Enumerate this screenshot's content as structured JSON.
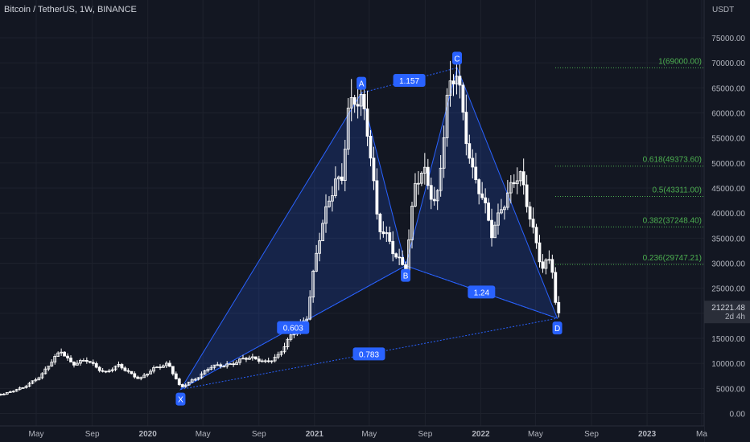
{
  "header": {
    "symbol": "Bitcoin / TetherUS, 1W, BINANCE",
    "currency": "USDT"
  },
  "colors": {
    "background": "#131722",
    "grid": "#1e222d",
    "text": "#b2b5be",
    "pattern_fill": "rgba(41,98,255,0.18)",
    "pattern_line": "#2962ff",
    "fib_text": "#4caf50",
    "fib_line": "#4caf50",
    "up": "#ffffff",
    "down": "#ffffff",
    "price_tag": "#2a2e39"
  },
  "chart_data": {
    "type": "candlestick",
    "title": "Bitcoin / TetherUS, 1W, BINANCE",
    "y_axis": {
      "label": "USDT",
      "ticks": [
        0,
        5000,
        10000,
        15000,
        20000,
        25000,
        30000,
        35000,
        40000,
        45000,
        50000,
        55000,
        60000,
        65000,
        70000,
        75000
      ],
      "tick_labels": [
        "0.00",
        "5000.00",
        "10000.00",
        "15000.00",
        "20000.00",
        "25000.00",
        "30000.00",
        "35000.00",
        "40000.00",
        "45000.00",
        "50000.00",
        "55000.00",
        "60000.00",
        "65000.00",
        "70000.00",
        "75000.00"
      ]
    },
    "x_axis": {
      "ticks": [
        {
          "label": "May",
          "date": "2019-05-01"
        },
        {
          "label": "Sep",
          "date": "2019-09-01"
        },
        {
          "label": "2020",
          "date": "2020-01-01"
        },
        {
          "label": "May",
          "date": "2020-05-01"
        },
        {
          "label": "Sep",
          "date": "2020-09-01"
        },
        {
          "label": "2021",
          "date": "2021-01-01"
        },
        {
          "label": "May",
          "date": "2021-05-01"
        },
        {
          "label": "Sep",
          "date": "2021-09-01"
        },
        {
          "label": "2022",
          "date": "2022-01-01"
        },
        {
          "label": "May",
          "date": "2022-05-01"
        },
        {
          "label": "Sep",
          "date": "2022-09-01"
        },
        {
          "label": "2023",
          "date": "2023-01-01"
        },
        {
          "label": "Ma",
          "date": "2023-05-01"
        }
      ]
    },
    "price_path": [
      [
        "2019-01-01",
        3700
      ],
      [
        "2019-02-15",
        3900
      ],
      [
        "2019-04-01",
        5000
      ],
      [
        "2019-05-15",
        8000
      ],
      [
        "2019-06-25",
        12500
      ],
      [
        "2019-07-20",
        10000
      ],
      [
        "2019-08-20",
        10400
      ],
      [
        "2019-09-30",
        8300
      ],
      [
        "2019-10-28",
        9400
      ],
      [
        "2019-12-15",
        7000
      ],
      [
        "2020-01-15",
        8800
      ],
      [
        "2020-02-15",
        10200
      ],
      [
        "2020-03-13",
        5000
      ],
      [
        "2020-04-15",
        7000
      ],
      [
        "2020-05-15",
        9300
      ],
      [
        "2020-06-15",
        9400
      ],
      [
        "2020-07-27",
        11000
      ],
      [
        "2020-09-15",
        10500
      ],
      [
        "2020-10-15",
        11500
      ],
      [
        "2020-11-15",
        16000
      ],
      [
        "2020-12-15",
        19500
      ],
      [
        "2021-01-01",
        29000
      ],
      [
        "2021-01-15",
        36000
      ],
      [
        "2021-02-15",
        48000
      ],
      [
        "2021-03-01",
        46000
      ],
      [
        "2021-03-15",
        59000
      ],
      [
        "2021-04-14",
        63500
      ],
      [
        "2021-05-01",
        56000
      ],
      [
        "2021-05-20",
        37000
      ],
      [
        "2021-06-20",
        33000
      ],
      [
        "2021-07-20",
        29500
      ],
      [
        "2021-08-10",
        45000
      ],
      [
        "2021-09-01",
        48000
      ],
      [
        "2021-09-25",
        42000
      ],
      [
        "2021-10-20",
        62000
      ],
      [
        "2021-11-10",
        68000
      ],
      [
        "2021-12-15",
        48000
      ],
      [
        "2022-01-25",
        36000
      ],
      [
        "2022-02-15",
        42000
      ],
      [
        "2022-03-28",
        47000
      ],
      [
        "2022-04-20",
        40000
      ],
      [
        "2022-05-15",
        29000
      ],
      [
        "2022-06-05",
        30000
      ],
      [
        "2022-06-18",
        18500
      ],
      [
        "2022-06-25",
        21221.48
      ]
    ],
    "last_price": "21221.48",
    "countdown": "2d 4h",
    "harmonic_pattern": {
      "points": [
        {
          "label": "X",
          "date": "2020-03-13",
          "price": 4800
        },
        {
          "label": "A",
          "date": "2021-04-14",
          "price": 64000
        },
        {
          "label": "B",
          "date": "2021-07-20",
          "price": 29500
        },
        {
          "label": "C",
          "date": "2021-11-10",
          "price": 69000
        },
        {
          "label": "D",
          "date": "2022-06-18",
          "price": 19000
        }
      ],
      "ratios": [
        {
          "label": "0.603",
          "from": "X",
          "to": "B"
        },
        {
          "label": "1.157",
          "from": "A",
          "to": "C"
        },
        {
          "label": "1.24",
          "from": "B",
          "to": "D"
        },
        {
          "label": "0.783",
          "from": "X",
          "to": "D"
        }
      ]
    },
    "fib_levels": [
      {
        "ratio": "1",
        "price": 69000,
        "label": "1(69000.00)"
      },
      {
        "ratio": "0.618",
        "price": 49373.6,
        "label": "0.618(49373.60)"
      },
      {
        "ratio": "0.5",
        "price": 43311,
        "label": "0.5(43311.00)"
      },
      {
        "ratio": "0.382",
        "price": 37248.4,
        "label": "0.382(37248.40)"
      },
      {
        "ratio": "0.236",
        "price": 29747.21,
        "label": "0.236(29747.21)"
      }
    ],
    "grid": true
  }
}
